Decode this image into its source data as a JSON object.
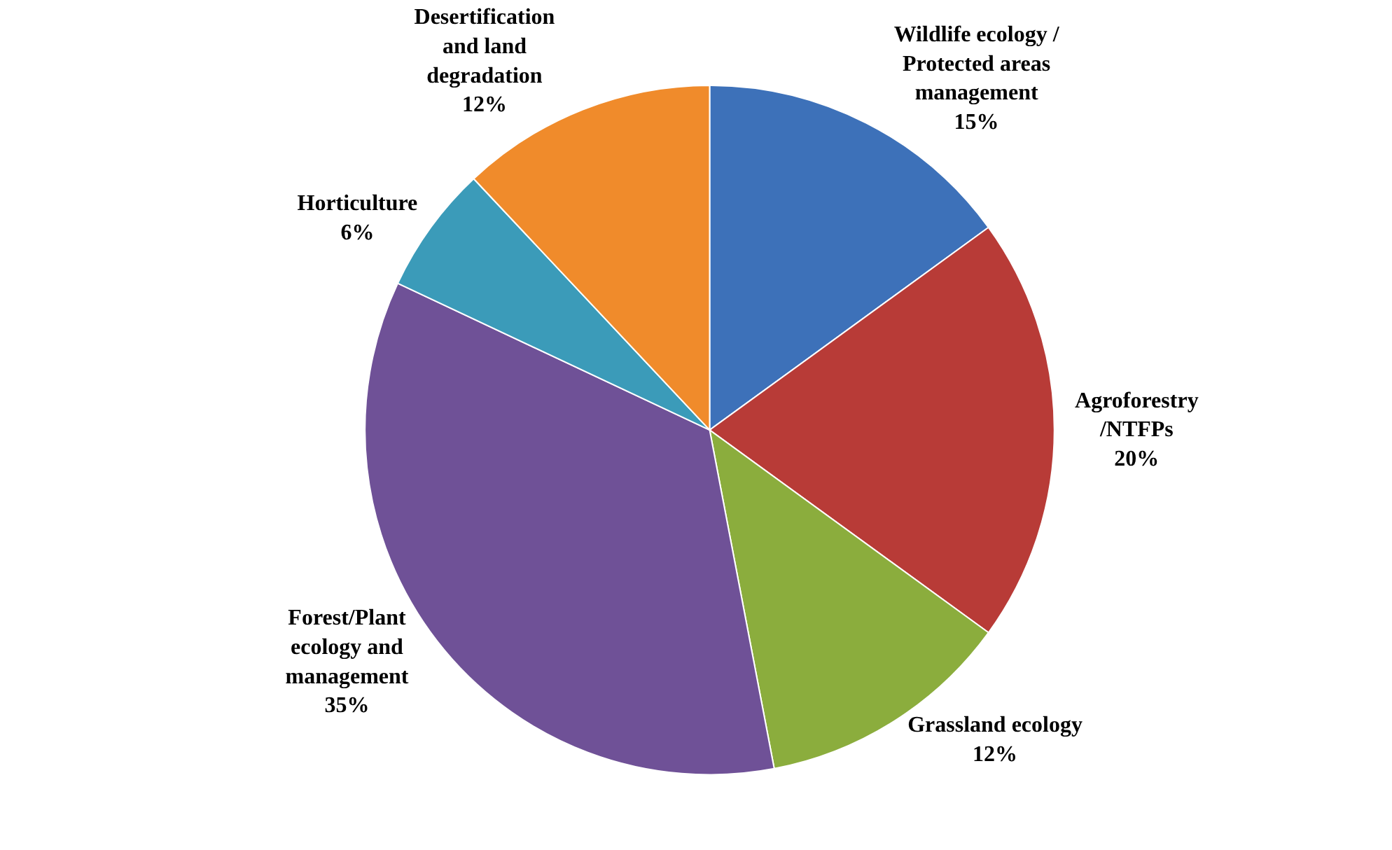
{
  "chart_data": {
    "type": "pie",
    "categories": [
      "Wildlife ecology / Protected areas management",
      "Agroforestry /NTFPs",
      "Grassland ecology",
      "Forest/Plant ecology and management",
      "Horticulture",
      "Desertification and land degradation"
    ],
    "values": [
      15,
      20,
      12,
      35,
      6,
      12
    ],
    "value_labels": [
      "15%",
      "20%",
      "12%",
      "35%",
      "6%",
      "12%"
    ],
    "colors": [
      "#3d71b9",
      "#b83b37",
      "#8bad3d",
      "#6f5197",
      "#3b9bb9",
      "#f08b2b"
    ],
    "legend": false
  }
}
